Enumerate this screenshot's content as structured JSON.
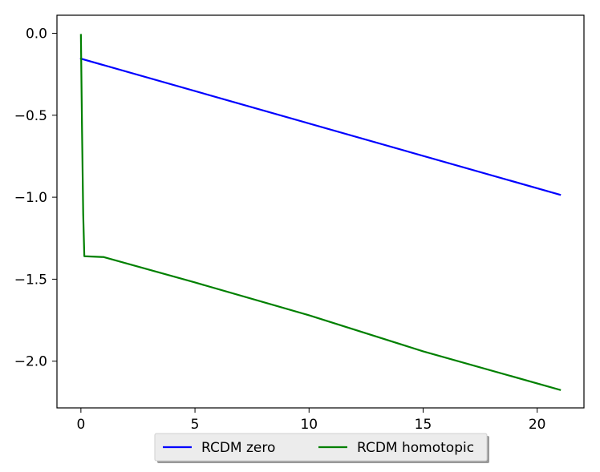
{
  "chart_data": {
    "type": "line",
    "title": "",
    "xlabel": "",
    "ylabel": "",
    "xlim": [
      -1.05,
      22.05
    ],
    "ylim": [
      -2.285,
      0.11
    ],
    "grid": false,
    "legend_placement": "bottom-center",
    "x_ticks": [
      0,
      5,
      10,
      15,
      20
    ],
    "x_tick_labels": [
      "0",
      "5",
      "10",
      "15",
      "20"
    ],
    "y_ticks": [
      0.0,
      -0.5,
      -1.0,
      -1.5,
      -2.0
    ],
    "y_tick_labels": [
      "0.0",
      "−0.5",
      "−1.0",
      "−1.5",
      "−2.0"
    ],
    "series": [
      {
        "name": "RCDM zero",
        "color": "#0000ff",
        "points": [
          [
            0.0,
            -0.155
          ],
          [
            21.0,
            -0.985
          ]
        ]
      },
      {
        "name": "RCDM homotopic",
        "color": "#008000",
        "points": [
          [
            0.0,
            -0.01
          ],
          [
            0.05,
            -0.6
          ],
          [
            0.1,
            -1.1
          ],
          [
            0.15,
            -1.36
          ],
          [
            1.0,
            -1.365
          ],
          [
            5.0,
            -1.52
          ],
          [
            10.0,
            -1.72
          ],
          [
            15.0,
            -1.94
          ],
          [
            21.0,
            -2.175
          ]
        ]
      }
    ]
  }
}
